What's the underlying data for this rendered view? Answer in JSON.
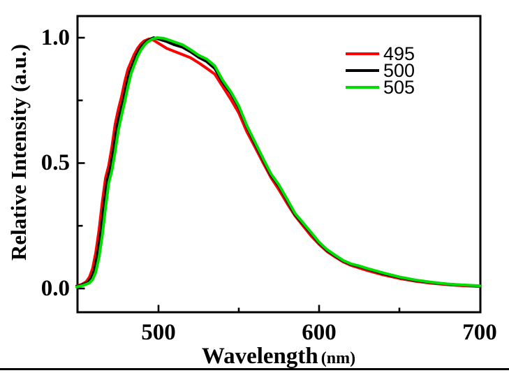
{
  "figure": {
    "y_axis_title": "Relative Intensity (a.u.)",
    "x_axis_title": "Wavelength",
    "x_axis_unit": "(nm)",
    "y_tick_labels": [
      "1.0",
      "0.5",
      "0.0"
    ],
    "x_tick_labels": [
      "500",
      "600",
      "700"
    ]
  },
  "chart_data": {
    "type": "line",
    "title": "",
    "xlabel": "Wavelength (nm)",
    "ylabel": "Relative Intensity (a.u.)",
    "xlim": [
      449,
      700
    ],
    "ylim": [
      -0.1,
      1.09
    ],
    "x_major_ticks": [
      500,
      600,
      700
    ],
    "x_minor_ticks": [
      550,
      650
    ],
    "y_major_ticks": [
      0.0,
      0.5,
      1.0
    ],
    "y_minor_ticks": [
      0.25,
      0.75
    ],
    "grid": false,
    "legend_position": "upper right",
    "series": [
      {
        "name": "495",
        "color": "#ff0000",
        "points": [
          [
            449,
            0.01
          ],
          [
            452,
            0.016
          ],
          [
            455,
            0.027
          ],
          [
            457,
            0.045
          ],
          [
            459,
            0.08
          ],
          [
            461,
            0.145
          ],
          [
            463,
            0.235
          ],
          [
            465,
            0.345
          ],
          [
            467,
            0.44
          ],
          [
            469,
            0.49
          ],
          [
            471,
            0.565
          ],
          [
            473,
            0.655
          ],
          [
            475,
            0.715
          ],
          [
            477,
            0.765
          ],
          [
            479,
            0.825
          ],
          [
            481,
            0.875
          ],
          [
            483,
            0.905
          ],
          [
            485,
            0.935
          ],
          [
            487,
            0.958
          ],
          [
            489,
            0.975
          ],
          [
            491,
            0.987
          ],
          [
            494,
            0.995
          ],
          [
            497,
            0.99
          ],
          [
            500,
            0.978
          ],
          [
            505,
            0.958
          ],
          [
            510,
            0.945
          ],
          [
            515,
            0.933
          ],
          [
            520,
            0.92
          ],
          [
            525,
            0.9
          ],
          [
            530,
            0.878
          ],
          [
            535,
            0.855
          ],
          [
            540,
            0.805
          ],
          [
            545,
            0.755
          ],
          [
            550,
            0.7
          ],
          [
            555,
            0.625
          ],
          [
            560,
            0.565
          ],
          [
            565,
            0.503
          ],
          [
            570,
            0.443
          ],
          [
            575,
            0.394
          ],
          [
            580,
            0.34
          ],
          [
            585,
            0.29
          ],
          [
            590,
            0.25
          ],
          [
            595,
            0.21
          ],
          [
            600,
            0.176
          ],
          [
            605,
            0.147
          ],
          [
            610,
            0.126
          ],
          [
            615,
            0.106
          ],
          [
            620,
            0.092
          ],
          [
            625,
            0.082
          ],
          [
            630,
            0.072
          ],
          [
            640,
            0.054
          ],
          [
            650,
            0.04
          ],
          [
            660,
            0.029
          ],
          [
            670,
            0.021
          ],
          [
            680,
            0.015
          ],
          [
            690,
            0.011
          ],
          [
            700,
            0.008
          ]
        ]
      },
      {
        "name": "500",
        "color": "#000000",
        "points": [
          [
            449,
            0.008
          ],
          [
            452,
            0.013
          ],
          [
            456,
            0.024
          ],
          [
            458,
            0.04
          ],
          [
            460,
            0.072
          ],
          [
            462,
            0.135
          ],
          [
            464,
            0.22
          ],
          [
            466,
            0.33
          ],
          [
            468,
            0.43
          ],
          [
            470,
            0.48
          ],
          [
            472,
            0.555
          ],
          [
            474,
            0.64
          ],
          [
            476,
            0.7
          ],
          [
            478,
            0.75
          ],
          [
            480,
            0.81
          ],
          [
            482,
            0.862
          ],
          [
            484,
            0.895
          ],
          [
            486,
            0.928
          ],
          [
            488,
            0.952
          ],
          [
            490,
            0.97
          ],
          [
            492,
            0.983
          ],
          [
            495,
            0.995
          ],
          [
            497,
            1.0
          ],
          [
            500,
            0.995
          ],
          [
            505,
            0.985
          ],
          [
            510,
            0.972
          ],
          [
            515,
            0.962
          ],
          [
            520,
            0.944
          ],
          [
            525,
            0.922
          ],
          [
            530,
            0.905
          ],
          [
            535,
            0.878
          ],
          [
            540,
            0.822
          ],
          [
            545,
            0.778
          ],
          [
            550,
            0.722
          ],
          [
            555,
            0.645
          ],
          [
            560,
            0.578
          ],
          [
            565,
            0.515
          ],
          [
            570,
            0.452
          ],
          [
            575,
            0.408
          ],
          [
            580,
            0.352
          ],
          [
            585,
            0.295
          ],
          [
            590,
            0.258
          ],
          [
            595,
            0.22
          ],
          [
            600,
            0.182
          ],
          [
            605,
            0.152
          ],
          [
            610,
            0.13
          ],
          [
            615,
            0.11
          ],
          [
            620,
            0.096
          ],
          [
            625,
            0.088
          ],
          [
            630,
            0.078
          ],
          [
            640,
            0.059
          ],
          [
            650,
            0.044
          ],
          [
            660,
            0.032
          ],
          [
            670,
            0.024
          ],
          [
            680,
            0.017
          ],
          [
            690,
            0.013
          ],
          [
            700,
            0.01
          ]
        ]
      },
      {
        "name": "505",
        "color": "#00dd00",
        "points": [
          [
            449,
            0.006
          ],
          [
            453,
            0.012
          ],
          [
            457,
            0.022
          ],
          [
            459,
            0.036
          ],
          [
            461,
            0.066
          ],
          [
            463,
            0.125
          ],
          [
            465,
            0.21
          ],
          [
            467,
            0.32
          ],
          [
            469,
            0.42
          ],
          [
            471,
            0.47
          ],
          [
            473,
            0.545
          ],
          [
            475,
            0.63
          ],
          [
            477,
            0.69
          ],
          [
            479,
            0.745
          ],
          [
            481,
            0.805
          ],
          [
            483,
            0.858
          ],
          [
            485,
            0.892
          ],
          [
            487,
            0.925
          ],
          [
            489,
            0.95
          ],
          [
            491,
            0.968
          ],
          [
            493,
            0.982
          ],
          [
            496,
            0.994
          ],
          [
            499,
            1.0
          ],
          [
            503,
            0.998
          ],
          [
            507,
            0.99
          ],
          [
            510,
            0.983
          ],
          [
            515,
            0.972
          ],
          [
            520,
            0.952
          ],
          [
            525,
            0.93
          ],
          [
            530,
            0.915
          ],
          [
            535,
            0.888
          ],
          [
            540,
            0.83
          ],
          [
            545,
            0.785
          ],
          [
            550,
            0.728
          ],
          [
            555,
            0.65
          ],
          [
            560,
            0.585
          ],
          [
            565,
            0.52
          ],
          [
            570,
            0.458
          ],
          [
            575,
            0.413
          ],
          [
            580,
            0.357
          ],
          [
            585,
            0.3
          ],
          [
            590,
            0.262
          ],
          [
            595,
            0.224
          ],
          [
            600,
            0.185
          ],
          [
            605,
            0.155
          ],
          [
            610,
            0.133
          ],
          [
            615,
            0.112
          ],
          [
            620,
            0.098
          ],
          [
            625,
            0.09
          ],
          [
            630,
            0.08
          ],
          [
            640,
            0.062
          ],
          [
            650,
            0.046
          ],
          [
            660,
            0.034
          ],
          [
            670,
            0.025
          ],
          [
            680,
            0.018
          ],
          [
            690,
            0.014
          ],
          [
            700,
            0.011
          ]
        ]
      }
    ]
  }
}
